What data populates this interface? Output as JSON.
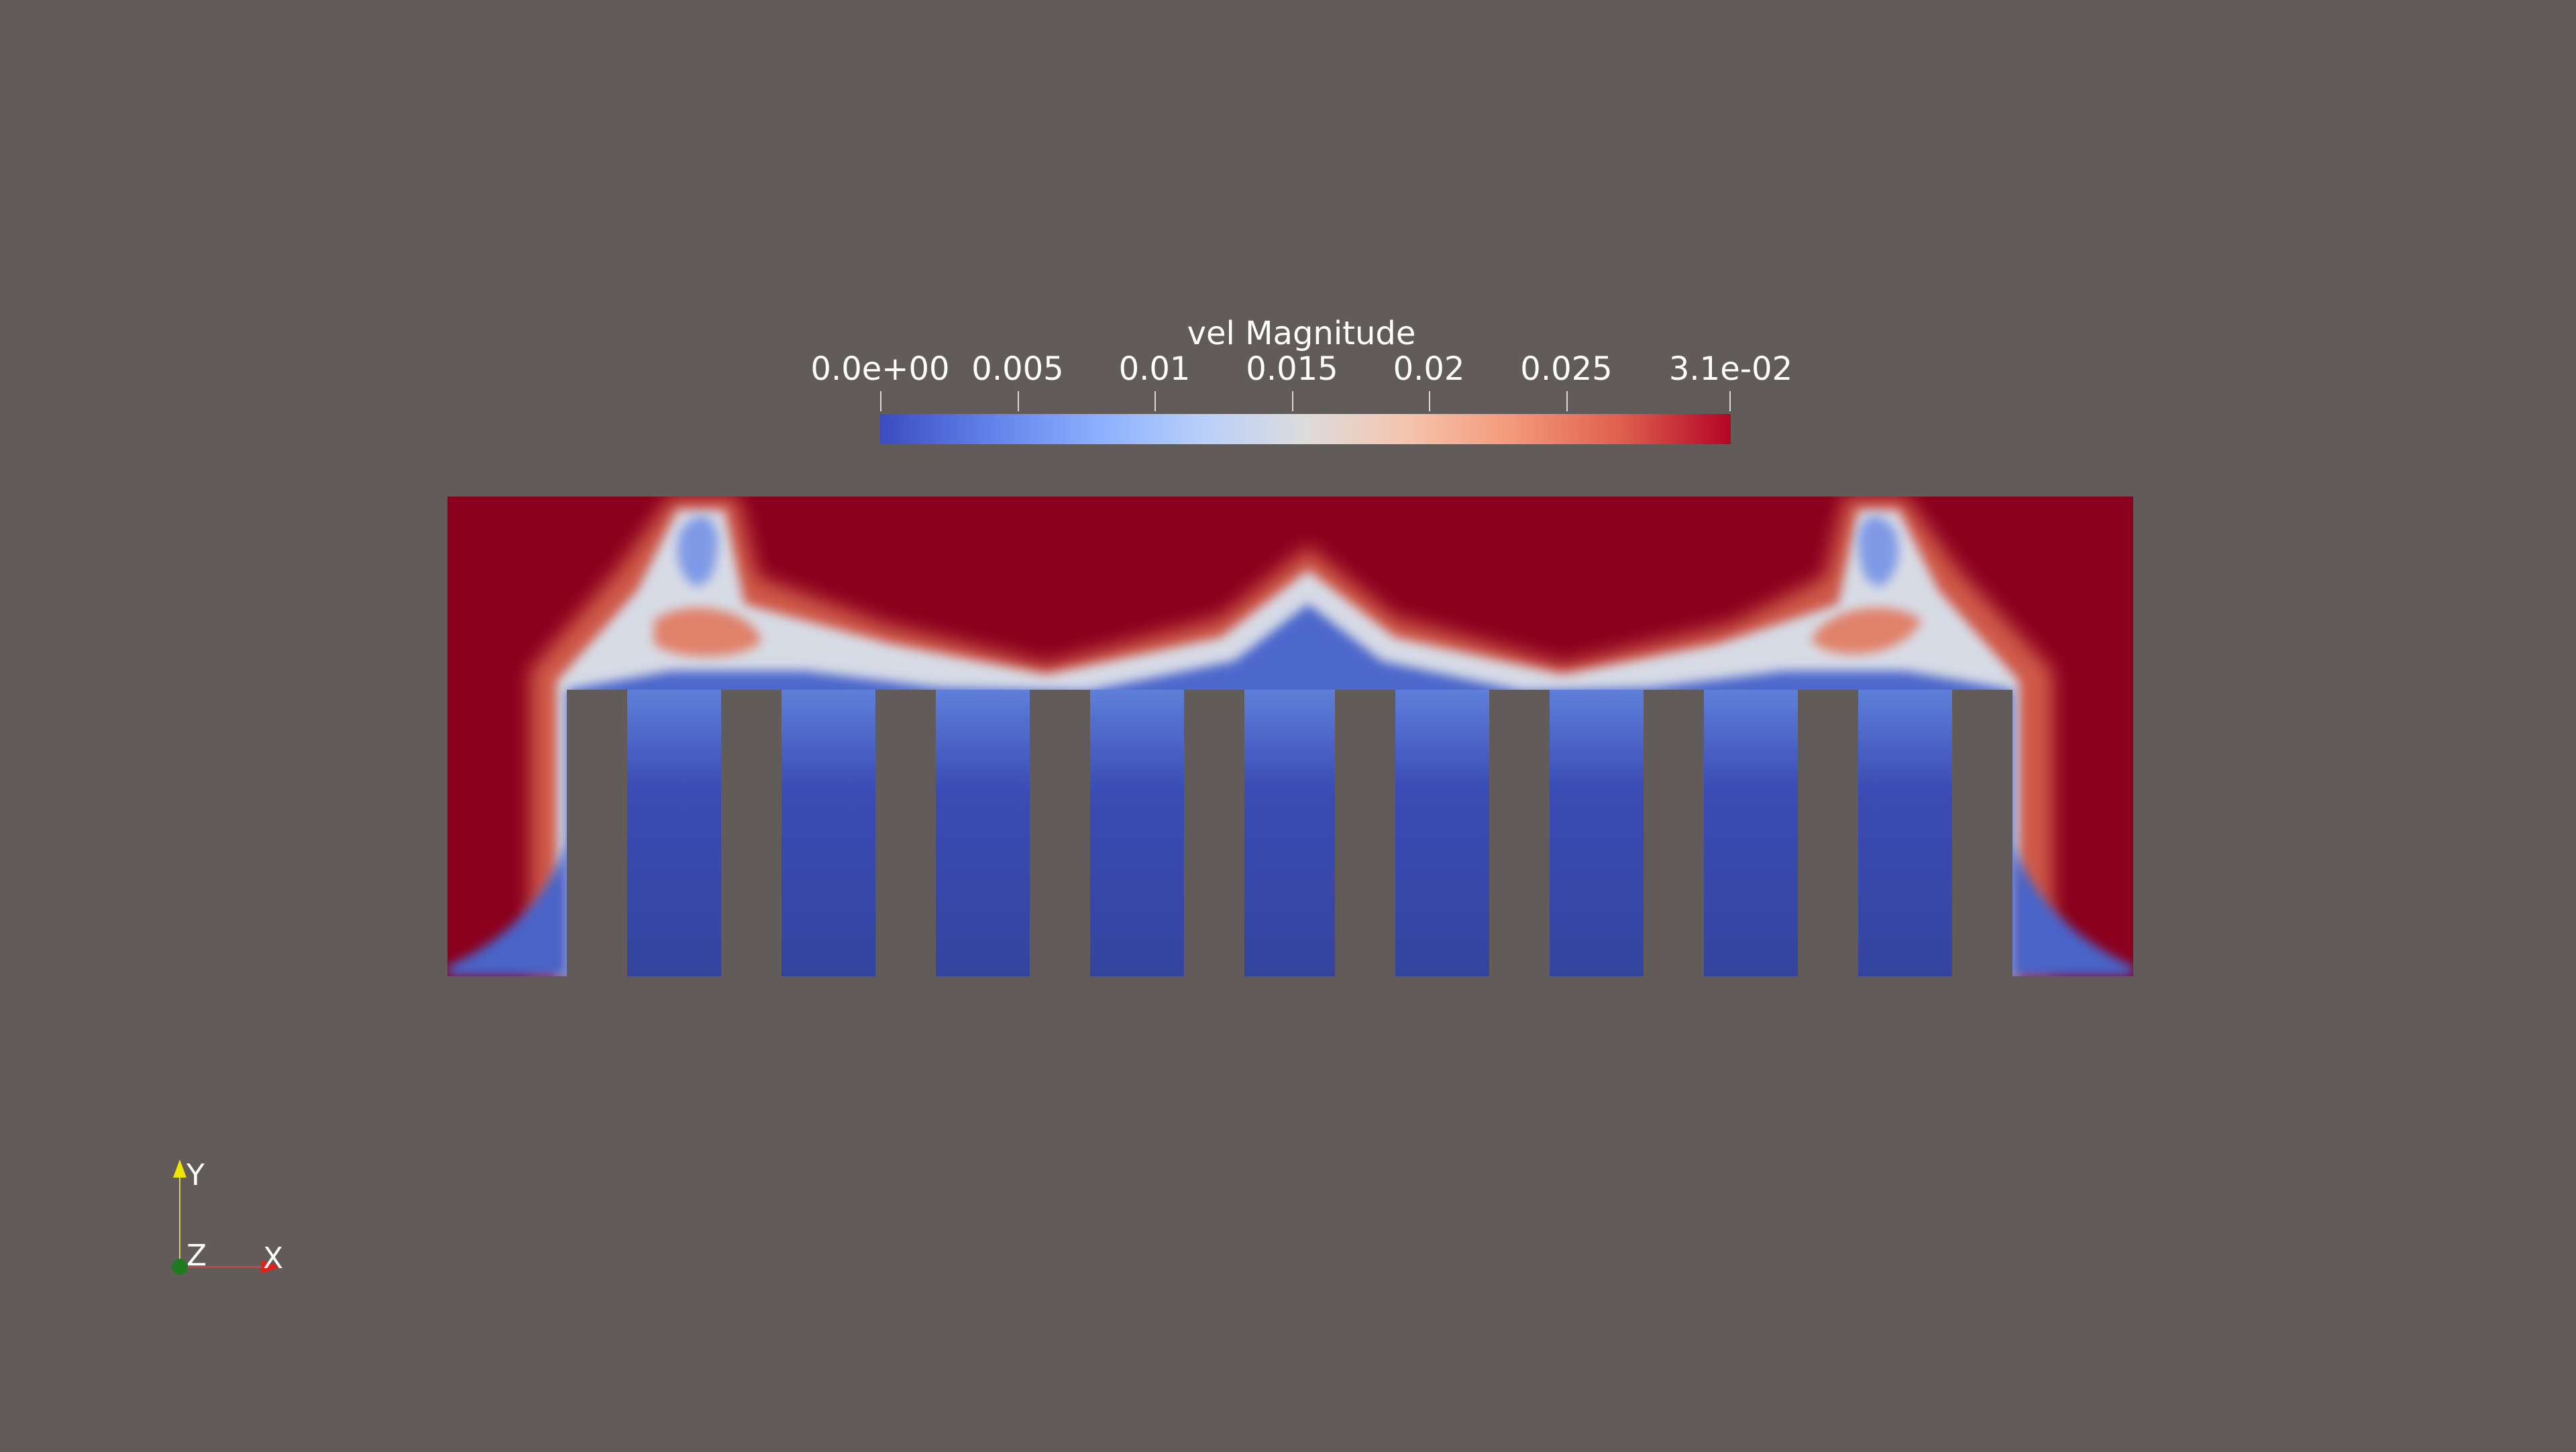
{
  "scalar_bar": {
    "title": "vel Magnitude",
    "range": [
      0,
      0.031
    ],
    "tick_labels": [
      "0.0e+00",
      "0.005",
      "0.01",
      "0.015",
      "0.02",
      "0.025",
      "3.1e-02"
    ],
    "tick_values": [
      0,
      0.005,
      0.01,
      0.015,
      0.02,
      0.025,
      0.031
    ],
    "colormap": [
      "#3b4cc0",
      "#6282ea",
      "#8db0fe",
      "#b9d0f9",
      "#dddcdc",
      "#f5c4ad",
      "#f49a7b",
      "#de604d",
      "#b40426"
    ]
  },
  "view": {
    "background_color": "#615c59",
    "high_color": "#8b001d",
    "low_color": "#34449e",
    "fin_count": 10
  },
  "axes": {
    "x_label": "X",
    "y_label": "Y",
    "z_label": "Z",
    "x_color": "#e0201b",
    "y_color": "#f0e500",
    "z_color": "#1f7a1f"
  }
}
